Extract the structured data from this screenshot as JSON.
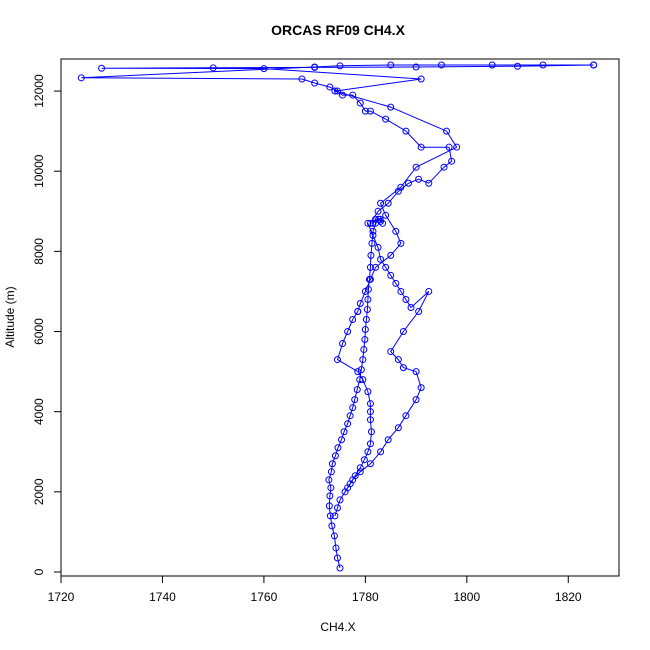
{
  "chart_data": {
    "type": "line",
    "title": "ORCAS RF09 CH4.X",
    "xlabel": "CH4.X",
    "ylabel": "Altitude (m)",
    "xlim": [
      1720,
      1830
    ],
    "ylim": [
      -100,
      12800
    ],
    "x_ticks": [
      1720,
      1740,
      1760,
      1780,
      1800,
      1820
    ],
    "y_ticks": [
      0,
      2000,
      4000,
      6000,
      8000,
      10000,
      12000
    ],
    "grid": false,
    "legend": "none",
    "color": "#0000ff",
    "markers": "open-circle",
    "series": [
      {
        "x": [
          1775.0,
          1774.5,
          1774.2,
          1773.9,
          1773.4,
          1773.1,
          1772.9,
          1773.0,
          1773.2,
          1772.8,
          1773.3,
          1773.5,
          1774.1,
          1774.6,
          1775.3,
          1775.8,
          1776.5,
          1777.0,
          1777.5,
          1777.9,
          1778.4,
          1778.9,
          1779.2,
          1779.5,
          1779.7,
          1779.9,
          1780.0,
          1780.2,
          1780.4,
          1780.5,
          1780.6,
          1780.8,
          1781.0,
          1781.1,
          1781.3,
          1781.5,
          1782.0,
          1782.6,
          1783.0,
          1783.4,
          1782.9,
          1782.0,
          1781.5
        ],
        "y": [
          100,
          350,
          600,
          900,
          1150,
          1400,
          1650,
          1900,
          2100,
          2300,
          2500,
          2700,
          2900,
          3100,
          3300,
          3500,
          3700,
          3900,
          4100,
          4300,
          4550,
          4800,
          5050,
          5300,
          5550,
          5800,
          6050,
          6300,
          6550,
          6800,
          7050,
          7300,
          7600,
          7900,
          8200,
          8500,
          8700,
          8800,
          8750,
          8700,
          8800,
          8800,
          8700
        ]
      },
      {
        "x": [
          1781.0,
          1782.5,
          1784.5,
          1786.5,
          1788.5,
          1790.5,
          1792.5,
          1795.5,
          1797.0,
          1796.5,
          1791.0,
          1788.0,
          1784.0,
          1781.0,
          1780.0,
          1779.0,
          1777.5,
          1775.5,
          1774.5,
          1773.0,
          1770.0,
          1767.5,
          1724.0,
          1770.0,
          1775.0,
          1785.0,
          1795.0,
          1805.0,
          1815.0,
          1825.0
        ],
        "y": [
          8700,
          9000,
          9200,
          9500,
          9700,
          9800,
          9700,
          10100,
          10250,
          10600,
          10600,
          11000,
          11300,
          11500,
          11500,
          11700,
          11900,
          11900,
          12000,
          12100,
          12200,
          12300,
          12330,
          12600,
          12630,
          12650,
          12650,
          12650,
          12650,
          12650
        ]
      },
      {
        "x": [
          1825.0,
          1810.0,
          1790.0,
          1770.0,
          1750.0,
          1728.0,
          1760.0,
          1791.0,
          1774.0,
          1785.0,
          1796.0,
          1798.0,
          1790.0,
          1787.0,
          1783.0,
          1784.0,
          1786.0,
          1787.0,
          1785.0,
          1782.0,
          1781.0,
          1780.0,
          1779.0,
          1778.5
        ],
        "y": [
          12650,
          12620,
          12600,
          12590,
          12580,
          12570,
          12560,
          12300,
          12000,
          11600,
          11000,
          10600,
          10100,
          9600,
          9200,
          8900,
          8500,
          8200,
          7900,
          7600,
          7300,
          7000,
          6700,
          6500
        ]
      },
      {
        "x": [
          1778.5,
          1777.5,
          1776.5,
          1775.5,
          1774.5,
          1778.5,
          1779.5,
          1780.5,
          1781.0,
          1781.0,
          1781.0,
          1781.2,
          1781.0,
          1780.5,
          1779.8,
          1779.0,
          1778.0,
          1777.0,
          1776.0,
          1775.0,
          1774.5,
          1774.0
        ],
        "y": [
          6500,
          6300,
          6000,
          5700,
          5300,
          5000,
          4800,
          4500,
          4200,
          4000,
          3800,
          3500,
          3200,
          3000,
          2800,
          2600,
          2400,
          2200,
          2000,
          1800,
          1600,
          1400
        ]
      },
      {
        "x": [
          1780.5,
          1781.5,
          1782.5,
          1783.0,
          1784.0,
          1785.0,
          1786.0,
          1787.0,
          1788.0,
          1789.0,
          1792.5,
          1790.5,
          1787.5,
          1785.0,
          1786.5,
          1787.5,
          1790.0,
          1791.0,
          1790.0,
          1788.0,
          1786.5,
          1784.5,
          1783.0,
          1781.0,
          1779.0,
          1777.5,
          1776.5
        ],
        "y": [
          8700,
          8400,
          8100,
          7800,
          7600,
          7400,
          7200,
          7000,
          6800,
          6600,
          7000,
          6500,
          6000,
          5500,
          5300,
          5100,
          5000,
          4600,
          4300,
          3900,
          3600,
          3300,
          3000,
          2700,
          2500,
          2300,
          2100
        ]
      }
    ]
  }
}
